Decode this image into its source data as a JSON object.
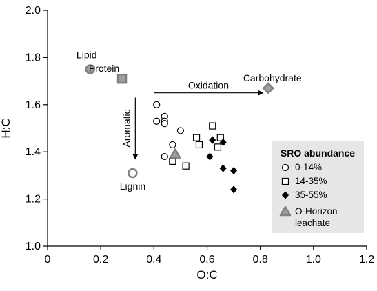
{
  "chart_data": {
    "type": "scatter",
    "xlabel": "O:C",
    "ylabel": "H:C",
    "xlim": [
      0,
      1.2
    ],
    "ylim": [
      1.0,
      2.0
    ],
    "x_ticks": [
      0,
      0.2,
      0.4,
      0.6,
      0.8,
      1.0,
      1.2
    ],
    "x_tick_labels": [
      "0",
      "0.2",
      "0.4",
      "0.6",
      "0.8",
      "1.0",
      "1.2"
    ],
    "y_ticks": [
      1.0,
      1.2,
      1.4,
      1.6,
      1.8,
      2.0
    ],
    "y_tick_labels": [
      "1.0",
      "1.2",
      "1.4",
      "1.6",
      "1.8",
      "2.0"
    ],
    "grid": false,
    "legend": {
      "title": "SRO abundance",
      "placement": "bottom-right",
      "entries": [
        "0-14%",
        "14-35%",
        "35-55%",
        "O-Horizon leachate"
      ]
    },
    "series": [
      {
        "name": "0-14%",
        "marker": "open-circle",
        "points": [
          {
            "x": 0.41,
            "y": 1.6
          },
          {
            "x": 0.41,
            "y": 1.53
          },
          {
            "x": 0.44,
            "y": 1.55
          },
          {
            "x": 0.44,
            "y": 1.53
          },
          {
            "x": 0.44,
            "y": 1.52
          },
          {
            "x": 0.5,
            "y": 1.49
          },
          {
            "x": 0.47,
            "y": 1.43
          },
          {
            "x": 0.44,
            "y": 1.38
          }
        ]
      },
      {
        "name": "14-35%",
        "marker": "open-square",
        "points": [
          {
            "x": 0.62,
            "y": 1.51
          },
          {
            "x": 0.56,
            "y": 1.46
          },
          {
            "x": 0.65,
            "y": 1.46
          },
          {
            "x": 0.57,
            "y": 1.43
          },
          {
            "x": 0.64,
            "y": 1.42
          },
          {
            "x": 0.47,
            "y": 1.36
          },
          {
            "x": 0.52,
            "y": 1.34
          }
        ]
      },
      {
        "name": "35-55%",
        "marker": "filled-diamond",
        "points": [
          {
            "x": 0.62,
            "y": 1.45
          },
          {
            "x": 0.66,
            "y": 1.44
          },
          {
            "x": 0.61,
            "y": 1.38
          },
          {
            "x": 0.66,
            "y": 1.33
          },
          {
            "x": 0.7,
            "y": 1.32
          },
          {
            "x": 0.7,
            "y": 1.24
          }
        ]
      },
      {
        "name": "O-Horizon leachate",
        "marker": "gray-triangle",
        "points": [
          {
            "x": 0.48,
            "y": 1.39
          }
        ]
      }
    ],
    "reference_compounds": [
      {
        "label": "Lipid",
        "x": 0.16,
        "y": 1.75,
        "marker": "gray-circle"
      },
      {
        "label": "Protein",
        "x": 0.28,
        "y": 1.71,
        "marker": "gray-square"
      },
      {
        "label": "Carbohydrate",
        "x": 0.83,
        "y": 1.67,
        "marker": "gray-diamond"
      },
      {
        "label": "Lignin",
        "x": 0.32,
        "y": 1.31,
        "marker": "gray-open-circle"
      }
    ],
    "annotations": [
      {
        "text": "Oxidation",
        "direction": "right",
        "from": {
          "x": 0.4,
          "y": 1.65
        },
        "to": {
          "x": 0.81,
          "y": 1.65
        }
      },
      {
        "text": "Aromatic",
        "direction": "down",
        "from": {
          "x": 0.33,
          "y": 1.63
        },
        "to": {
          "x": 0.33,
          "y": 1.37
        }
      }
    ],
    "colors": {
      "reference_fill": "#9e9e9e",
      "reference_stroke": "#808080",
      "legend_background": "#e6e6e6",
      "marker_stroke": "#000000"
    }
  }
}
